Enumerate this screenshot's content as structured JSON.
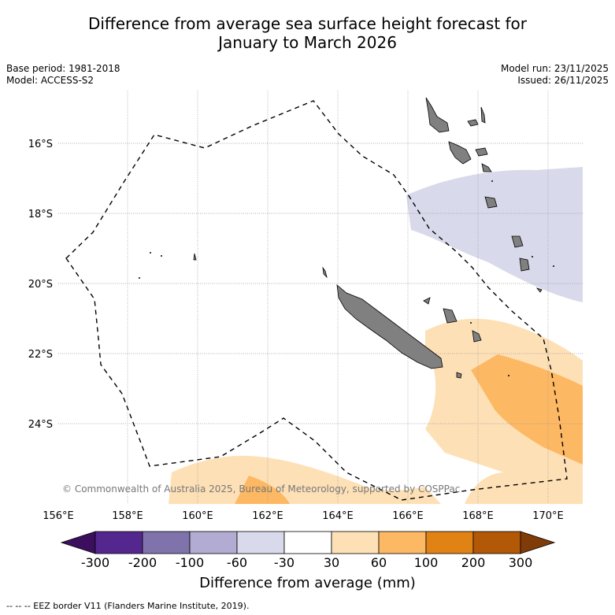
{
  "title": {
    "line1": "Difference from average sea surface height forecast for",
    "line2": "January to March 2026"
  },
  "meta": {
    "base_period": "Base period: 1981-2018",
    "model": "Model: ACCESS-S2",
    "model_run": "Model run: 23/11/2025",
    "issued": "Issued: 26/11/2025"
  },
  "map": {
    "lat_labels": [
      "16°S",
      "18°S",
      "20°S",
      "22°S",
      "24°S"
    ],
    "lon_labels": [
      "156°E",
      "158°E",
      "160°E",
      "162°E",
      "164°E",
      "166°E",
      "168°E",
      "170°E"
    ],
    "copyright": "© Commonwealth of Australia 2025, Bureau of Meteorology, supported by COSPPac"
  },
  "colorbar": {
    "tick_labels": [
      "-300",
      "-200",
      "-100",
      "-60",
      "-30",
      "30",
      "60",
      "100",
      "200",
      "300"
    ],
    "colors": [
      "#3b0f5e",
      "#54278f",
      "#8073ac",
      "#b2abd2",
      "#d8daeb",
      "#ffffff",
      "#fee0b6",
      "#fdb863",
      "#e08214",
      "#b35806",
      "#7f3b08"
    ],
    "label": "Difference from average (mm)"
  },
  "footnote": "-- -- -- EEZ border V11 (Flanders Marine Institute, 2019)."
}
